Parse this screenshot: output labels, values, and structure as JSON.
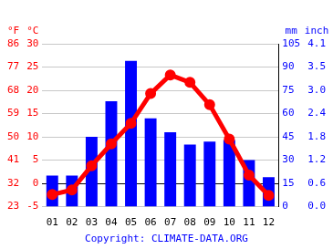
{
  "chart_data": {
    "type": "bar",
    "categories": [
      "01",
      "02",
      "03",
      "04",
      "05",
      "06",
      "07",
      "08",
      "09",
      "10",
      "11",
      "12"
    ],
    "series": [
      {
        "type": "bar",
        "axis": "y2",
        "color": "#0000ff",
        "values": [
          20,
          20,
          45,
          68,
          94,
          57,
          48,
          40,
          42,
          43,
          30,
          19
        ]
      },
      {
        "type": "line",
        "axis": "y",
        "color": "#ff0000",
        "marker": "circle",
        "values": [
          -2.4,
          -1.4,
          3.8,
          8.5,
          12.9,
          19.3,
          23.3,
          21.7,
          16.9,
          9.5,
          1.8,
          -2.6
        ]
      }
    ],
    "ylabel": "°C",
    "ylim": [
      -5,
      30
    ],
    "yticks": [
      -5,
      0,
      5,
      10,
      15,
      20,
      25,
      30
    ],
    "y_alt": {
      "label": "°F",
      "lim": [
        23,
        86
      ],
      "ticks": [
        23,
        32,
        41,
        50,
        59,
        68,
        77,
        86
      ]
    },
    "y2label": "mm",
    "y2lim": [
      0,
      105
    ],
    "y2ticks": [
      0,
      15,
      30,
      45,
      60,
      75,
      90,
      105
    ],
    "y2_alt": {
      "label": "inch",
      "lim": [
        0,
        4.134
      ],
      "ticks": [
        {
          "value": 0,
          "label": "0.0"
        },
        {
          "value": 0.591,
          "label": "0.6"
        },
        {
          "value": 1.181,
          "label": "1.2"
        },
        {
          "value": 1.772,
          "label": "1.8"
        },
        {
          "value": 2.362,
          "label": "2.4"
        },
        {
          "value": 2.953,
          "label": "3.0"
        },
        {
          "value": 3.543,
          "label": "3.5"
        },
        {
          "value": 4.134,
          "label": "4.1"
        }
      ]
    },
    "annotations": [
      "Copyright: CLIMATE-DATA.ORG"
    ],
    "grid": true
  }
}
